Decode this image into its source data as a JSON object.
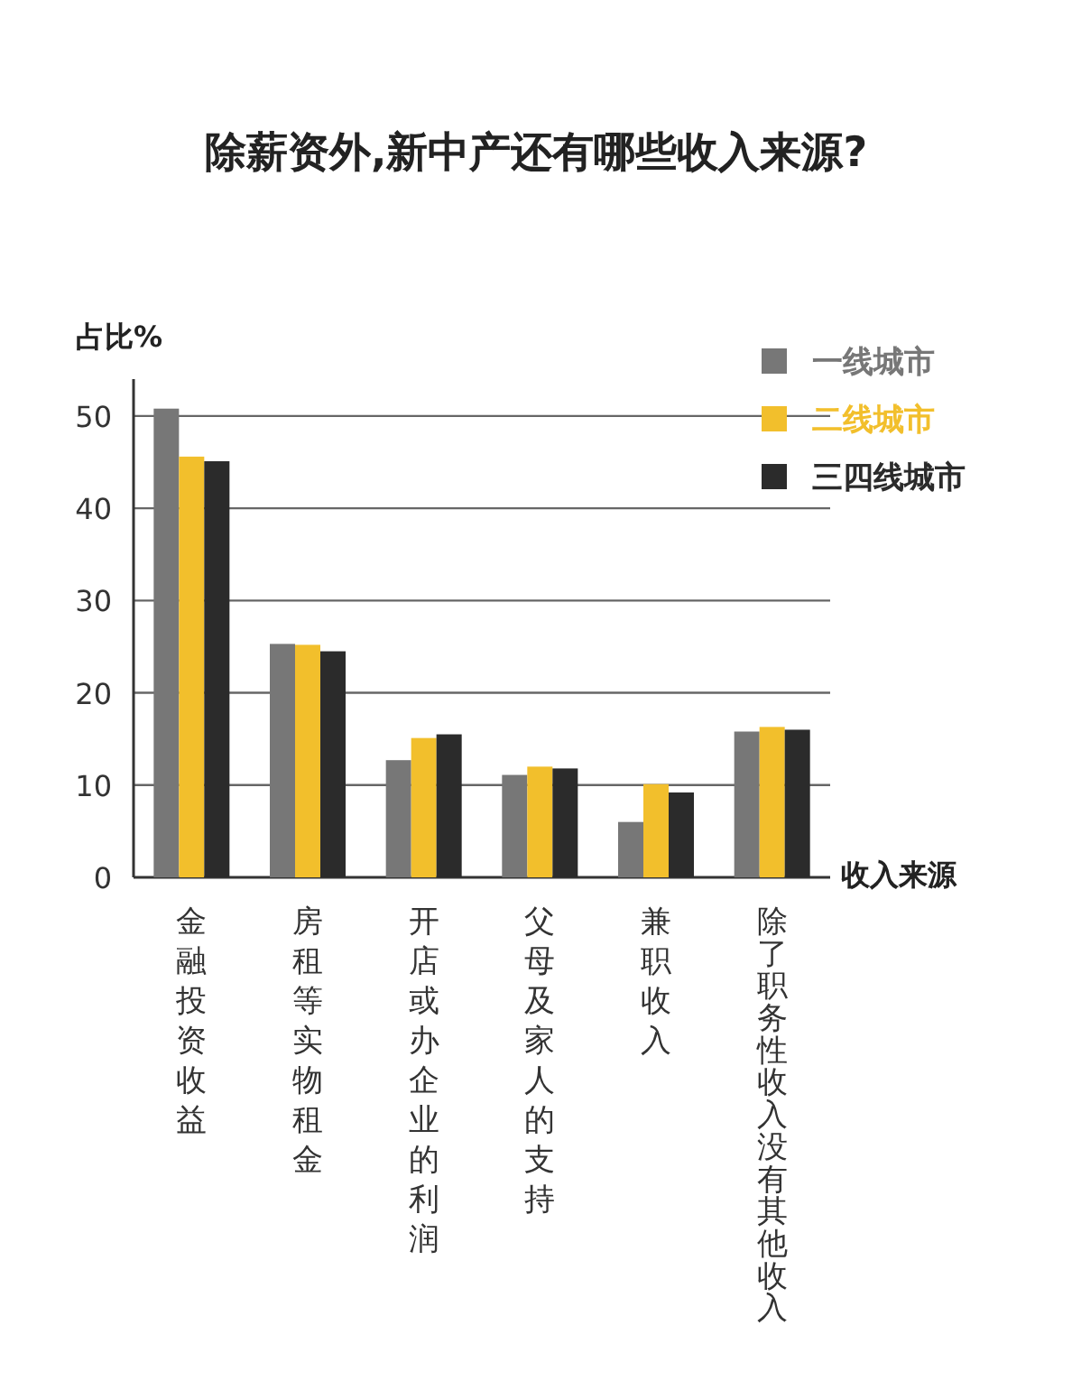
{
  "chart_data": {
    "type": "bar",
    "title": "除薪资外,新中产还有哪些收入来源?",
    "xlabel": "收入来源",
    "ylabel": "占比%",
    "categories": [
      "金融投资收益",
      "房租等实物租金",
      "开店或办企业的利润",
      "父母及家人的支持",
      "兼职收入",
      "除了职务性收入没有其他收入"
    ],
    "series": [
      {
        "name": "一线城市",
        "color": "#777777",
        "values": [
          50.8,
          25.3,
          12.7,
          11.1,
          6.0,
          15.8
        ]
      },
      {
        "name": "二线城市",
        "color": "#f2bf2c",
        "values": [
          45.6,
          25.2,
          15.1,
          12.0,
          10.1,
          16.3
        ]
      },
      {
        "name": "三四线城市",
        "color": "#2b2b2b",
        "values": [
          45.1,
          24.5,
          15.5,
          11.8,
          9.2,
          16.0
        ]
      }
    ],
    "ylim": [
      0,
      54
    ],
    "yticks": [
      0,
      10,
      20,
      30,
      40,
      50
    ],
    "grid": "y",
    "legend": "top right"
  }
}
